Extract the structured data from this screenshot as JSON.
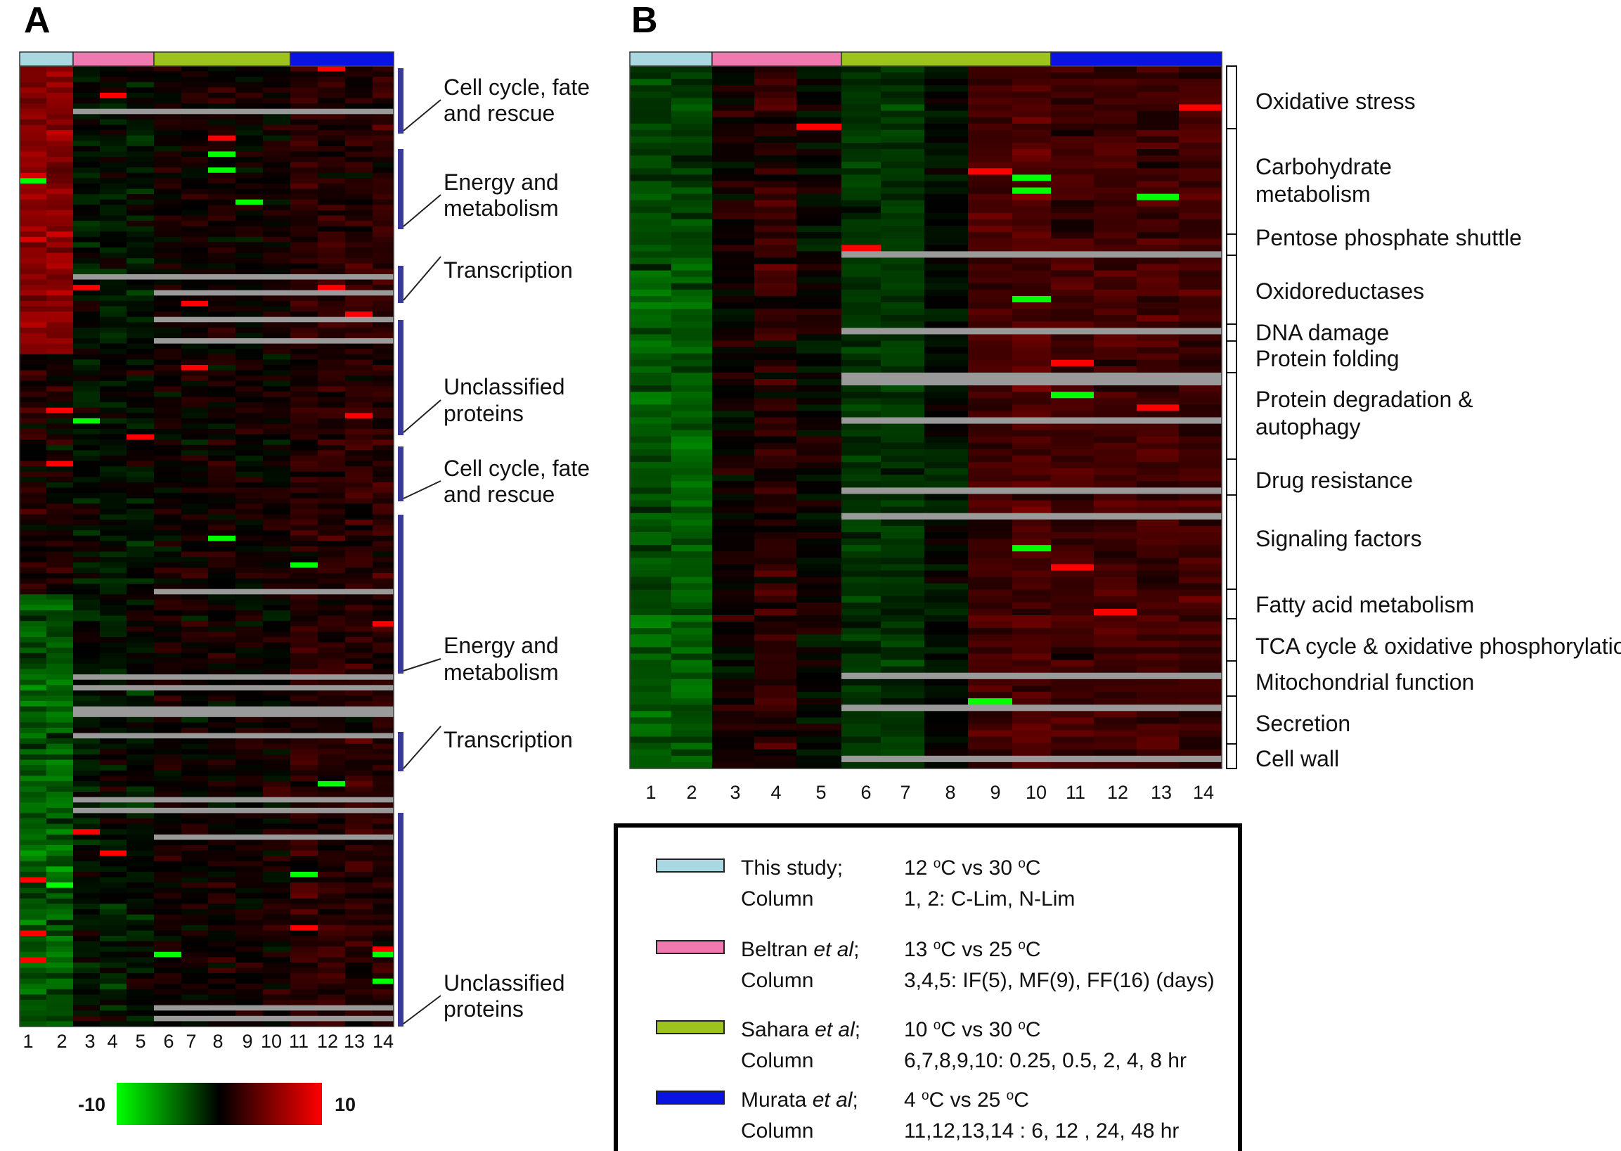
{
  "chart_data": [
    {
      "panel": "A",
      "type": "heatmap",
      "columns": [
        "1",
        "2",
        "3",
        "4",
        "5",
        "6",
        "7",
        "8",
        "9",
        "10",
        "11",
        "12",
        "13",
        "14"
      ],
      "study_colors": [
        "#a9d8e0",
        "#f07ab0",
        "#9dc41c",
        "#0a14e0"
      ],
      "study_spans": [
        [
          1,
          2
        ],
        [
          3,
          5
        ],
        [
          6,
          10
        ],
        [
          11,
          14
        ]
      ],
      "value_range": [
        -10,
        10
      ],
      "categories": [
        {
          "label": [
            "Cell cycle, fate",
            "and rescue"
          ]
        },
        {
          "label": [
            "Energy and",
            "metabolism"
          ]
        },
        {
          "label": [
            "Transcription"
          ]
        },
        {
          "label": [
            "Unclassified",
            "proteins"
          ]
        },
        {
          "label": [
            "Cell cycle, fate",
            "and rescue"
          ]
        },
        {
          "label": [
            "Energy and",
            "metabolism"
          ]
        },
        {
          "label": [
            "Transcription"
          ]
        },
        {
          "label": [
            "Unclassified",
            "proteins"
          ]
        }
      ]
    },
    {
      "panel": "B",
      "type": "heatmap",
      "columns": [
        "1",
        "2",
        "3",
        "4",
        "5",
        "6",
        "7",
        "8",
        "9",
        "10",
        "11",
        "12",
        "13",
        "14"
      ],
      "study_colors": [
        "#a9d8e0",
        "#f07ab0",
        "#9dc41c",
        "#0a14e0"
      ],
      "study_spans": [
        [
          1,
          2
        ],
        [
          3,
          5
        ],
        [
          6,
          10
        ],
        [
          11,
          14
        ]
      ],
      "value_range": [
        -10,
        10
      ],
      "categories": [
        {
          "label": [
            "Oxidative stress"
          ]
        },
        {
          "label": [
            "Carbohydrate",
            "metabolism"
          ]
        },
        {
          "label": [
            "Pentose phosphate shuttle"
          ]
        },
        {
          "label": [
            "Oxidoreductases"
          ]
        },
        {
          "label": [
            "DNA damage"
          ]
        },
        {
          "label": [
            "Protein folding"
          ]
        },
        {
          "label": [
            "Protein degradation &",
            "autophagy"
          ]
        },
        {
          "label": [
            "Drug resistance"
          ]
        },
        {
          "label": [
            "Signaling factors"
          ]
        },
        {
          "label": [
            "Fatty acid metabolism"
          ]
        },
        {
          "label": [
            "TCA cycle & oxidative phosphorylation"
          ]
        },
        {
          "label": [
            "Mitochondrial function"
          ]
        },
        {
          "label": [
            "Secretion"
          ]
        },
        {
          "label": [
            "Cell wall"
          ]
        }
      ]
    }
  ],
  "panel_labels": {
    "a": "A",
    "b": "B"
  },
  "colorbar": {
    "min_label": "-10",
    "max_label": "10",
    "colors": [
      "#00ff00",
      "#000000",
      "#ff0000"
    ]
  },
  "legend": [
    {
      "color": "#a9d8e0",
      "study": "This study;",
      "italic": "",
      "line2": "Column",
      "cond_parts": [
        "12 ",
        "o",
        "C vs 30 ",
        "o",
        "C"
      ],
      "detail": "1, 2: C-Lim, N-Lim"
    },
    {
      "color": "#f07ab0",
      "study": "Beltran ",
      "italic": "et al",
      "suffix": ";",
      "line2": "Column",
      "cond_parts": [
        "13 ",
        "o",
        "C vs 25 ",
        "o",
        "C"
      ],
      "detail": "3,4,5: IF(5), MF(9), FF(16) (days)"
    },
    {
      "color": "#9dc41c",
      "study": "Sahara ",
      "italic": "et al",
      "suffix": ";",
      "line2": "Column",
      "cond_parts": [
        "10 ",
        "o",
        "C vs 30 ",
        "o",
        "C"
      ],
      "detail": "6,7,8,9,10: 0.25, 0.5, 2, 4, 8 hr"
    },
    {
      "color": "#0a14e0",
      "study": "Murata ",
      "italic": "et al",
      "suffix": ";",
      "line2": "Column",
      "cond_parts": [
        "4 ",
        "o",
        "C vs 25 ",
        "o",
        "C"
      ],
      "detail": "11,12,13,14 : 6, 12 , 24, 48 hr"
    }
  ]
}
